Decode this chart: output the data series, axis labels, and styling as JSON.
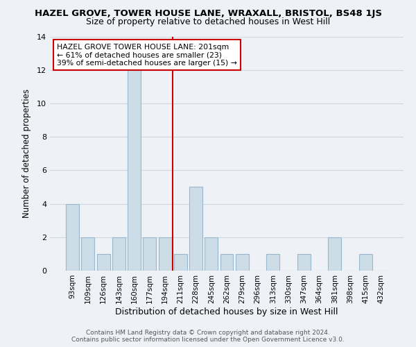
{
  "title": "HAZEL GROVE, TOWER HOUSE LANE, WRAXALL, BRISTOL, BS48 1JS",
  "subtitle": "Size of property relative to detached houses in West Hill",
  "xlabel": "Distribution of detached houses by size in West Hill",
  "ylabel": "Number of detached properties",
  "bar_labels": [
    "93sqm",
    "109sqm",
    "126sqm",
    "143sqm",
    "160sqm",
    "177sqm",
    "194sqm",
    "211sqm",
    "228sqm",
    "245sqm",
    "262sqm",
    "279sqm",
    "296sqm",
    "313sqm",
    "330sqm",
    "347sqm",
    "364sqm",
    "381sqm",
    "398sqm",
    "415sqm",
    "432sqm"
  ],
  "bar_values": [
    4,
    2,
    1,
    2,
    12,
    2,
    2,
    1,
    5,
    2,
    1,
    1,
    0,
    1,
    0,
    1,
    0,
    2,
    0,
    1,
    0
  ],
  "bar_color": "#ccdde8",
  "bar_edge_color": "#9ab8cc",
  "ylim": [
    0,
    14
  ],
  "yticks": [
    0,
    2,
    4,
    6,
    8,
    10,
    12,
    14
  ],
  "vline_x_index": 7,
  "vline_color": "#cc0000",
  "annotation_text": "HAZEL GROVE TOWER HOUSE LANE: 201sqm\n← 61% of detached houses are smaller (23)\n39% of semi-detached houses are larger (15) →",
  "annotation_box_color": "#ffffff",
  "annotation_box_edge": "#cc0000",
  "footer_line1": "Contains HM Land Registry data © Crown copyright and database right 2024.",
  "footer_line2": "Contains public sector information licensed under the Open Government Licence v3.0.",
  "background_color": "#eef2f7",
  "grid_color": "#d0d8e0",
  "title_fontsize": 9.5,
  "subtitle_fontsize": 9.0,
  "ylabel_fontsize": 8.5,
  "xlabel_fontsize": 9.0,
  "tick_fontsize": 7.5,
  "annotation_fontsize": 7.8,
  "footer_fontsize": 6.5
}
